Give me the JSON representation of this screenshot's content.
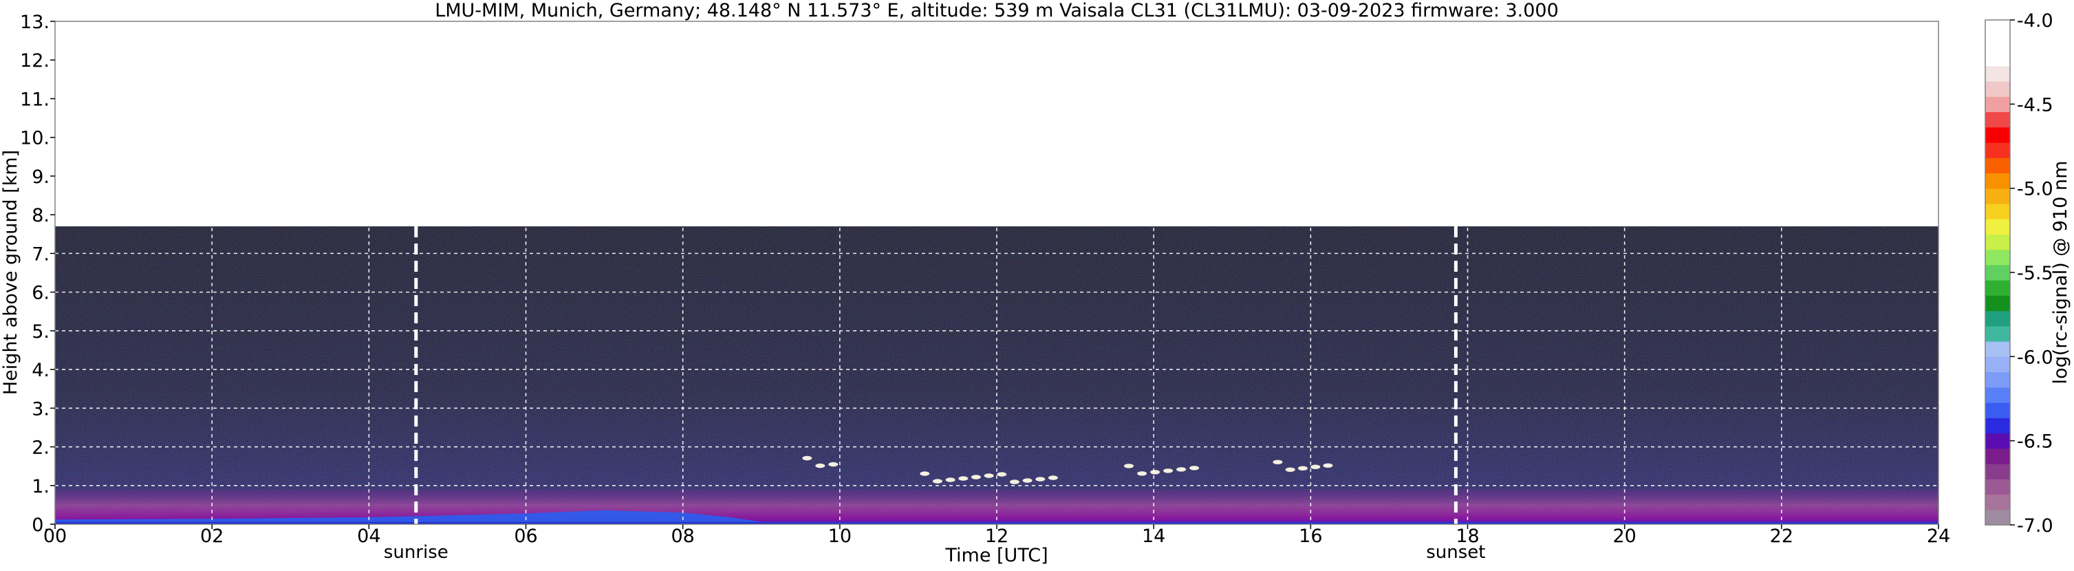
{
  "chart_data": {
    "type": "heatmap",
    "title": "LMU-MIM, Munich, Germany; 48.148° N 11.573° E, altitude: 539 m    Vaisala CL31 (CL31LMU): 03-09-2023    firmware: 3.000",
    "xlabel": "Time [UTC]",
    "ylabel": "Height above ground [km]",
    "xlim": [
      0,
      24
    ],
    "ylim": [
      0,
      13
    ],
    "x_ticks": [
      "00",
      "02",
      "04",
      "06",
      "08",
      "10",
      "12",
      "14",
      "16",
      "18",
      "20",
      "22",
      "24"
    ],
    "x_tick_values": [
      0,
      2,
      4,
      6,
      8,
      10,
      12,
      14,
      16,
      18,
      20,
      22,
      24
    ],
    "y_ticks": [
      "0.",
      "1.",
      "2.",
      "3.",
      "4.",
      "5.",
      "6.",
      "7.",
      "8.",
      "9.",
      "10.",
      "11.",
      "12.",
      "13."
    ],
    "y_tick_values": [
      0,
      1,
      2,
      3,
      4,
      5,
      6,
      7,
      8,
      9,
      10,
      11,
      12,
      13
    ],
    "grid": true,
    "signal_top_km": 7.7,
    "sunrise": {
      "label": "sunrise",
      "time": 4.6
    },
    "sunset": {
      "label": "sunset",
      "time": 17.85
    },
    "colorbar": {
      "label": "log(rc-signal) @ 910 nm",
      "range": [
        -7.0,
        -4.0
      ],
      "ticks": [
        "-4.0",
        "-4.5",
        "-5.0",
        "-5.5",
        "-6.0",
        "-6.5",
        "-7.0"
      ],
      "tick_values": [
        -4.0,
        -4.5,
        -5.0,
        -5.5,
        -6.0,
        -6.5,
        -7.0
      ],
      "colors": [
        "#a08ca0",
        "#a8749c",
        "#9c5a94",
        "#8a3c8c",
        "#7a1c8c",
        "#5a0cb0",
        "#2a2ae0",
        "#3a5cf0",
        "#5a80f8",
        "#7c9cf8",
        "#98b0f8",
        "#a8c0f4",
        "#40b8a0",
        "#20a080",
        "#14901c",
        "#30b030",
        "#60d060",
        "#90e860",
        "#c8f048",
        "#f0f040",
        "#f8d020",
        "#f8b010",
        "#f89000",
        "#f86000",
        "#f83020",
        "#f80000",
        "#f04848",
        "#f0a0a0",
        "#f0c8c8",
        "#f4e4e4",
        "#ffffff",
        "#ffffff",
        "#ffffff"
      ]
    },
    "cloud_features": [
      {
        "time_start": 9.5,
        "time_end": 10.0,
        "height_km": 1.6
      },
      {
        "time_start": 11.0,
        "time_end": 12.8,
        "height_km": 1.2
      },
      {
        "time_start": 13.6,
        "time_end": 14.6,
        "height_km": 1.4
      },
      {
        "time_start": 15.5,
        "time_end": 16.3,
        "height_km": 1.5
      }
    ]
  }
}
